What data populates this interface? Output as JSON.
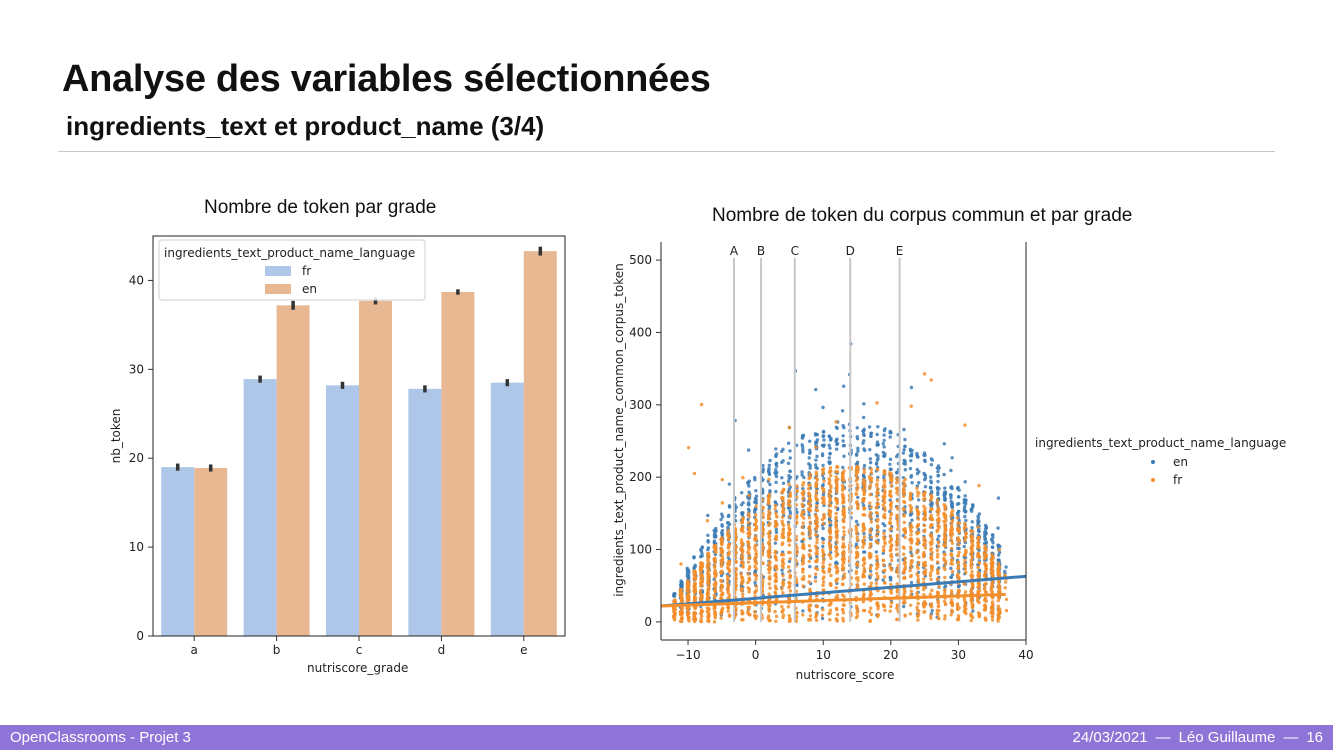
{
  "slide": {
    "title": "Analyse des variables sélectionnées",
    "subtitle": "ingredients_text et product_name (3/4)"
  },
  "footer": {
    "left": "OpenClassrooms - Projet 3",
    "date": "24/03/2021",
    "sep1": "—",
    "author": "Léo Guillaume",
    "sep2": "—",
    "page": "16"
  },
  "colors": {
    "fr_bar": "#aec7e8",
    "en_bar": "#e8b892",
    "en_point": "#3b7bb5",
    "fr_point": "#f28e2b",
    "footer_bg": "#8e74d6"
  },
  "chart_data": [
    {
      "type": "bar",
      "title": "Nombre de token par grade",
      "xlabel": "nutriscore_grade",
      "ylabel": "nb_token",
      "categories": [
        "a",
        "b",
        "c",
        "d",
        "e"
      ],
      "ylim": [
        0,
        45
      ],
      "yticks": [
        0,
        10,
        20,
        30,
        40
      ],
      "legend": {
        "title": "ingredients_text_product_name_language",
        "placement": "top-left"
      },
      "series": [
        {
          "name": "fr",
          "values": [
            19.0,
            28.9,
            28.2,
            27.8,
            28.5
          ],
          "err": [
            0.4,
            0.4,
            0.4,
            0.4,
            0.4
          ]
        },
        {
          "name": "en",
          "values": [
            18.9,
            37.2,
            37.7,
            38.7,
            43.3
          ],
          "err": [
            0.4,
            0.5,
            0.4,
            0.3,
            0.5
          ]
        }
      ]
    },
    {
      "type": "scatter",
      "title": "Nombre de token du corpus commun et par grade",
      "xlabel": "nutriscore_score",
      "ylabel": "ingredients_text_product_name_common_corpus_token",
      "xlim": [
        -14,
        40
      ],
      "ylim": [
        -25,
        525
      ],
      "xticks": [
        -10,
        0,
        10,
        20,
        30,
        40
      ],
      "xtick_labels": [
        "−10",
        "0",
        "10",
        "20",
        "30",
        "40"
      ],
      "yticks": [
        0,
        100,
        200,
        300,
        400,
        500
      ],
      "legend": {
        "title": "ingredients_text_product_name_language",
        "placement": "outside-right"
      },
      "grade_lines": [
        {
          "label": "A",
          "x": -3.2
        },
        {
          "label": "B",
          "x": 0.8
        },
        {
          "label": "C",
          "x": 5.8
        },
        {
          "label": "D",
          "x": 14
        },
        {
          "label": "E",
          "x": 21.3
        }
      ],
      "series": [
        {
          "name": "en",
          "regression": [
            [
              -14,
              22
            ],
            [
              40,
              63
            ]
          ]
        },
        {
          "name": "fr",
          "regression": [
            [
              -14,
              22
            ],
            [
              37,
              38
            ]
          ]
        }
      ]
    }
  ]
}
